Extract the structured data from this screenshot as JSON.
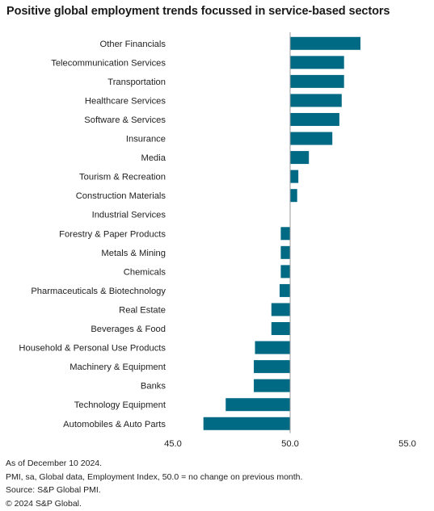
{
  "title": "Positive global employment trends focussed in service-based sectors",
  "chart_data": {
    "type": "bar",
    "orientation": "horizontal",
    "baseline": 50.0,
    "categories": [
      "Other Financials",
      "Telecommunication Services",
      "Transportation",
      "Healthcare Services",
      "Software & Services",
      "Insurance",
      "Media",
      "Tourism & Recreation",
      "Construction Materials",
      "Industrial Services",
      "Forestry & Paper Products",
      "Metals & Mining",
      "Chemicals",
      "Pharmaceuticals & Biotechnology",
      "Real Estate",
      "Beverages & Food",
      "Household & Personal Use Products",
      "Machinery & Equipment",
      "Banks",
      "Technology Equipment",
      "Automobiles & Auto Parts"
    ],
    "values": [
      53.0,
      52.3,
      52.3,
      52.2,
      52.1,
      51.8,
      50.8,
      50.35,
      50.3,
      50.0,
      49.6,
      49.6,
      49.6,
      49.55,
      49.2,
      49.2,
      48.5,
      48.45,
      48.45,
      47.25,
      46.3
    ],
    "xlim": [
      45.0,
      55.0
    ],
    "xticks": [
      "45.0",
      "50.0",
      "55.0"
    ],
    "bar_color": "#006a85",
    "xlabel": "",
    "ylabel": ""
  },
  "footnotes": [
    "As of December 10 2024.",
    "PMI, sa, Global data, Employment Index, 50.0 = no change on previous month.",
    "Source: S&P Global PMI.",
    "© 2024 S&P Global."
  ]
}
